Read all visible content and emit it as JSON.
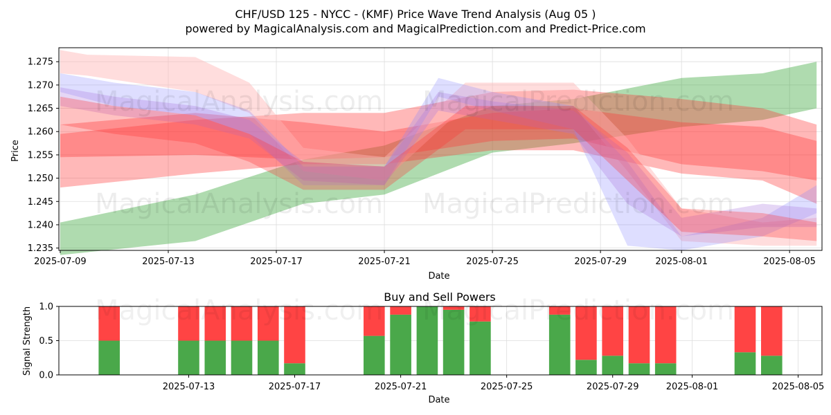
{
  "page": {
    "title_line1": "CHF/USD 125 - NYCC -  (KMF) Price Wave Trend Analysis (Aug 05 )",
    "title_line2": "powered by MagicalAnalysis.com and MagicalPrediction.com and Predict-Price.com",
    "watermarks": [
      "MagicalAnalysis.com",
      "MagicalPrediction.com"
    ]
  },
  "chart_data": [
    {
      "type": "area",
      "title": "",
      "xlabel": "Date",
      "ylabel": "Price",
      "x_range": [
        "2025-07-09",
        "2025-08-06"
      ],
      "ylim": [
        1.2345,
        1.278
      ],
      "x_ticks": [
        "2025-07-09",
        "2025-07-13",
        "2025-07-17",
        "2025-07-21",
        "2025-07-25",
        "2025-07-29",
        "2025-08-01",
        "2025-08-05"
      ],
      "y_ticks": [
        1.235,
        1.24,
        1.245,
        1.25,
        1.255,
        1.26,
        1.265,
        1.27,
        1.275
      ],
      "grid": true,
      "colors": {
        "green": "#2ca02c",
        "red": "#ff3333",
        "pink": "#ffb3b3",
        "blue": "#8888ff",
        "purple": "#aa77dd"
      },
      "series": [
        {
          "color": "green",
          "opacity": 0.38,
          "x": [
            "2025-07-09",
            "2025-07-14",
            "2025-07-18",
            "2025-07-21",
            "2025-07-25",
            "2025-07-28",
            "2025-08-01",
            "2025-08-04",
            "2025-08-06"
          ],
          "upper": [
            1.2405,
            1.2465,
            1.254,
            1.257,
            1.2655,
            1.267,
            1.2715,
            1.2725,
            1.275
          ],
          "lower": [
            1.2335,
            1.2365,
            1.2445,
            1.2465,
            1.2555,
            1.2575,
            1.261,
            1.2625,
            1.265
          ]
        },
        {
          "color": "red",
          "opacity": 0.35,
          "x": [
            "2025-07-09",
            "2025-07-14",
            "2025-07-18",
            "2025-07-21",
            "2025-07-25",
            "2025-07-28",
            "2025-08-01",
            "2025-08-04",
            "2025-08-06"
          ],
          "upper": [
            1.2595,
            1.2625,
            1.264,
            1.264,
            1.2685,
            1.269,
            1.267,
            1.265,
            1.2615
          ],
          "lower": [
            1.248,
            1.251,
            1.253,
            1.253,
            1.256,
            1.256,
            1.251,
            1.2495,
            1.2445
          ]
        },
        {
          "color": "red",
          "opacity": 0.35,
          "x": [
            "2025-07-09",
            "2025-07-14",
            "2025-07-18",
            "2025-07-21",
            "2025-07-25",
            "2025-07-28",
            "2025-08-01",
            "2025-08-04",
            "2025-08-06"
          ],
          "upper": [
            1.2615,
            1.264,
            1.262,
            1.26,
            1.264,
            1.265,
            1.262,
            1.261,
            1.258
          ],
          "lower": [
            1.2545,
            1.255,
            1.254,
            1.2545,
            1.258,
            1.2585,
            1.253,
            1.2515,
            1.2495
          ]
        },
        {
          "color": "pink",
          "opacity": 0.45,
          "x": [
            "2025-07-09",
            "2025-07-10",
            "2025-07-14",
            "2025-07-16",
            "2025-07-18",
            "2025-07-21",
            "2025-07-24",
            "2025-07-28",
            "2025-07-30",
            "2025-08-01",
            "2025-08-04",
            "2025-08-06"
          ],
          "upper": [
            1.2775,
            1.2765,
            1.276,
            1.2705,
            1.2565,
            1.2545,
            1.2705,
            1.2705,
            1.2585,
            1.2435,
            1.2405,
            1.2415
          ],
          "lower": [
            1.2725,
            1.272,
            1.2685,
            1.264,
            1.2515,
            1.2495,
            1.2655,
            1.2655,
            1.2515,
            1.2365,
            1.2355,
            1.2355
          ]
        },
        {
          "color": "blue",
          "opacity": 0.28,
          "x": [
            "2025-07-09",
            "2025-07-11",
            "2025-07-14",
            "2025-07-16",
            "2025-07-18",
            "2025-07-21",
            "2025-07-23",
            "2025-07-25",
            "2025-07-28",
            "2025-07-30",
            "2025-08-01",
            "2025-08-04",
            "2025-08-06"
          ],
          "upper": [
            1.2725,
            1.2705,
            1.2685,
            1.2645,
            1.2525,
            1.2525,
            1.2715,
            1.2685,
            1.2655,
            1.2535,
            1.2375,
            1.2415,
            1.2485
          ],
          "lower": [
            1.2685,
            1.2655,
            1.2635,
            1.2595,
            1.2485,
            1.2485,
            1.2675,
            1.2645,
            1.2605,
            1.2355,
            1.2345,
            1.2375,
            1.2425
          ]
        },
        {
          "color": "purple",
          "opacity": 0.3,
          "x": [
            "2025-07-09",
            "2025-07-11",
            "2025-07-14",
            "2025-07-16",
            "2025-07-18",
            "2025-07-21",
            "2025-07-23",
            "2025-07-25",
            "2025-07-28",
            "2025-07-30",
            "2025-08-01",
            "2025-08-04",
            "2025-08-06"
          ],
          "upper": [
            1.2695,
            1.2675,
            1.2655,
            1.2625,
            1.2535,
            1.2525,
            1.2685,
            1.2665,
            1.2645,
            1.2555,
            1.2415,
            1.2445,
            1.2435
          ],
          "lower": [
            1.2655,
            1.2635,
            1.2615,
            1.2585,
            1.2495,
            1.2485,
            1.2645,
            1.2625,
            1.2595,
            1.2445,
            1.2375,
            1.2395,
            1.2395
          ]
        },
        {
          "color": "red",
          "opacity": 0.3,
          "x": [
            "2025-07-09",
            "2025-07-11",
            "2025-07-14",
            "2025-07-16",
            "2025-07-18",
            "2025-07-21",
            "2025-07-24",
            "2025-07-28",
            "2025-07-30",
            "2025-08-01",
            "2025-08-04",
            "2025-08-06"
          ],
          "upper": [
            1.2675,
            1.2655,
            1.2635,
            1.2595,
            1.2535,
            1.2525,
            1.2655,
            1.2655,
            1.2565,
            1.2435,
            1.2425,
            1.2405
          ],
          "lower": [
            1.2615,
            1.2595,
            1.2575,
            1.2535,
            1.2475,
            1.2475,
            1.2605,
            1.2605,
            1.2495,
            1.2385,
            1.2375,
            1.2365
          ]
        }
      ]
    },
    {
      "type": "bar",
      "title": "Buy and Sell Powers",
      "xlabel": "Date",
      "ylabel": "Signal Strength",
      "ylim": [
        0,
        1.0
      ],
      "x_range": [
        "2025-07-08",
        "2025-08-06"
      ],
      "x_ticks": [
        "2025-07-13",
        "2025-07-17",
        "2025-07-21",
        "2025-07-25",
        "2025-07-29",
        "2025-08-01",
        "2025-08-05"
      ],
      "y_ticks": [
        0.0,
        0.5,
        1.0
      ],
      "grid": true,
      "colors": {
        "buy": "#4aa84a",
        "sell": "#ff4444"
      },
      "dates": [
        "2025-07-10",
        "2025-07-13",
        "2025-07-14",
        "2025-07-15",
        "2025-07-16",
        "2025-07-17",
        "2025-07-20",
        "2025-07-21",
        "2025-07-22",
        "2025-07-23",
        "2025-07-24",
        "2025-07-27",
        "2025-07-28",
        "2025-07-29",
        "2025-07-30",
        "2025-07-31",
        "2025-08-03",
        "2025-08-04"
      ],
      "buy": [
        0.5,
        0.5,
        0.5,
        0.5,
        0.5,
        0.17,
        0.57,
        0.88,
        1.0,
        0.95,
        0.78,
        0.88,
        0.22,
        0.28,
        0.17,
        0.17,
        0.33,
        0.28
      ],
      "sell": [
        0.5,
        0.5,
        0.5,
        0.5,
        0.5,
        0.83,
        0.43,
        0.12,
        0.0,
        0.05,
        0.22,
        0.12,
        0.78,
        0.72,
        0.83,
        0.83,
        0.67,
        0.72
      ]
    }
  ]
}
